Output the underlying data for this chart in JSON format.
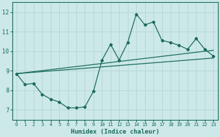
{
  "xlabel": "Humidex (Indice chaleur)",
  "ylabel": "",
  "xlim": [
    -0.5,
    23.5
  ],
  "ylim": [
    6.5,
    12.5
  ],
  "xticks": [
    0,
    1,
    2,
    3,
    4,
    5,
    6,
    7,
    8,
    9,
    10,
    11,
    12,
    13,
    14,
    15,
    16,
    17,
    18,
    19,
    20,
    21,
    22,
    23
  ],
  "yticks": [
    7,
    8,
    9,
    10,
    11,
    12
  ],
  "bg_color": "#cce8e8",
  "grid_color": "#b8d8d8",
  "line_color": "#1a6b5a",
  "line1_x": [
    0,
    1,
    2,
    3,
    4,
    5,
    6,
    7,
    8,
    9,
    10,
    11,
    12,
    13,
    14,
    15,
    16,
    17,
    18,
    19,
    20,
    21,
    22,
    23
  ],
  "line1_y": [
    8.85,
    8.3,
    8.35,
    7.8,
    7.55,
    7.4,
    7.1,
    7.1,
    7.15,
    7.95,
    9.55,
    10.35,
    9.55,
    10.45,
    11.9,
    11.35,
    11.5,
    10.55,
    10.45,
    10.3,
    10.1,
    10.65,
    10.1,
    9.75
  ],
  "line2_x": [
    0,
    23
  ],
  "line2_y": [
    8.85,
    9.65
  ],
  "line3_x": [
    0,
    23
  ],
  "line3_y": [
    8.85,
    10.05
  ],
  "marker": "D",
  "markersize": 2.0
}
